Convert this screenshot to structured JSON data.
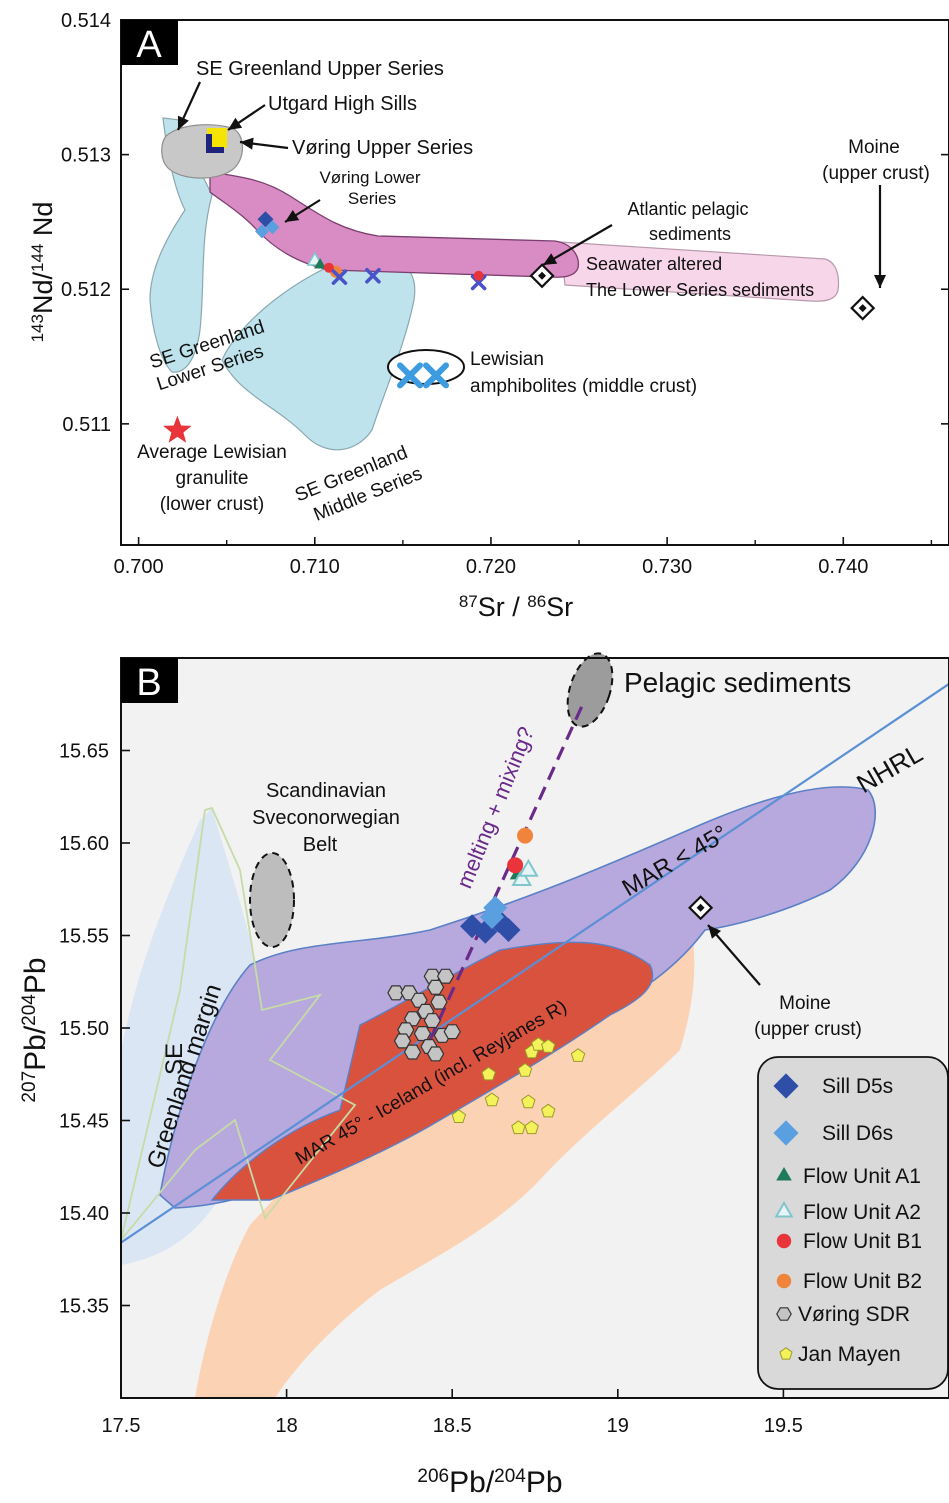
{
  "chart_data": [
    {
      "panel": "A",
      "type": "scatter",
      "xlabel": {
        "main": "Sr / ",
        "sup1": "87",
        "sup2": "86",
        "tail": "Sr"
      },
      "ylabel": {
        "pre": "143",
        "mid": "Nd/",
        "sup": "144",
        "tail": " Nd"
      },
      "xlim": [
        0.699,
        0.746
      ],
      "ylim": [
        0.5101,
        0.514
      ],
      "xticks": [
        0.7,
        0.71,
        0.72,
        0.73,
        0.74
      ],
      "xtick_labels": [
        "0.700",
        "0.710",
        "0.720",
        "0.730",
        "0.740"
      ],
      "yticks": [
        0.511,
        0.512,
        0.513,
        0.514
      ],
      "ytick_labels": [
        "0.511",
        "0.512",
        "0.513",
        "0.514"
      ],
      "colors": {
        "pink": "#d98cc4",
        "lightpink": "#f7d6ea",
        "cyan": "#bfe3ec",
        "grey": "#c8c8c8",
        "yellow": "#f5e400",
        "navy": "#20237a",
        "red": "#e8343a"
      },
      "labels": [
        "SE Greenland Upper Series",
        "Utgard High Sills",
        "Vøring Upper Series",
        "Vøring Lower",
        "Series",
        "Atlantic pelagic",
        "sediments",
        "Seawater altered",
        "The Lower Series sediments",
        "Moine",
        "(upper crust)",
        "SE Greenland",
        "Lower Series",
        "Lewisian",
        "amphibolites (middle crust)",
        "Average Lewisian",
        "granulite",
        "(lower crust)",
        "SE Greenland",
        "Middle Series"
      ],
      "points": [
        {
          "name": "Sill D5s",
          "x": 0.7072,
          "y": 0.51252
        },
        {
          "name": "Sill D6s",
          "x": 0.7076,
          "y": 0.51246
        },
        {
          "name": "Flow Unit A1",
          "x": 0.7103,
          "y": 0.51218
        },
        {
          "name": "Flow Unit A2",
          "x": 0.71,
          "y": 0.51221
        },
        {
          "name": "Flow Unit B1",
          "x": 0.7193,
          "y": 0.5121
        },
        {
          "name": "Flow Unit B2",
          "x": 0.7112,
          "y": 0.51213
        },
        {
          "name": "Atlantic pelagic sediments",
          "x": 0.7229,
          "y": 0.5121
        },
        {
          "name": "Moine",
          "x": 0.7411,
          "y": 0.51186
        },
        {
          "name": "Lewisian amphibolites",
          "x": 0.7162,
          "y": 0.51136
        },
        {
          "name": "Average Lewisian granulite",
          "x": 0.7022,
          "y": 0.51095
        }
      ]
    },
    {
      "panel": "B",
      "type": "scatter",
      "xlabel": {
        "pre": "206",
        "mid": "Pb/",
        "sup": "204",
        "tail": "Pb"
      },
      "ylabel": {
        "pre": "207",
        "mid": "Pb/",
        "sup": "204",
        "tail": "Pb"
      },
      "xlim": [
        17.5,
        20.0
      ],
      "ylim": [
        15.3,
        15.7
      ],
      "xticks": [
        17.5,
        18,
        18.5,
        19,
        19.5
      ],
      "xtick_labels": [
        "17.5",
        "18",
        "18.5",
        "19",
        "19.5"
      ],
      "yticks": [
        15.35,
        15.4,
        15.45,
        15.5,
        15.55,
        15.6,
        15.65
      ],
      "ytick_labels": [
        "15.35",
        "15.40",
        "15.45",
        "15.50",
        "15.55",
        "15.60",
        "15.65"
      ],
      "labels": [
        "Pelagic sediments",
        "NHRL",
        "MAR < 45°",
        "melting + mixing?",
        "Scandinavian",
        "Sveconorwegian",
        "Belt",
        "SE",
        "Greenland margin",
        "MAR 45° - Iceland (incl. Reyjanes R)",
        "Moine",
        "(upper crust)"
      ],
      "moine": {
        "x": 19.25,
        "y": 15.565
      },
      "series": [
        {
          "name": "Sill D5s",
          "marker": "diamond",
          "color": "#2f4ea8",
          "points": [
            [
              18.56,
              15.555
            ],
            [
              18.6,
              15.552
            ],
            [
              18.64,
              15.558
            ],
            [
              18.67,
              15.553
            ]
          ]
        },
        {
          "name": "Sill D6s",
          "marker": "diamond",
          "color": "#5aa0e0",
          "points": [
            [
              18.63,
              15.565
            ],
            [
              18.62,
              15.56
            ]
          ]
        },
        {
          "name": "Flow Unit A1",
          "marker": "triangle",
          "color": "#1f7a5a",
          "points": [
            [
              18.7,
              15.583
            ]
          ]
        },
        {
          "name": "Flow Unit A2",
          "marker": "triangle-open",
          "color": "#7fc6cc",
          "points": [
            [
              18.71,
              15.58
            ],
            [
              18.73,
              15.585
            ]
          ]
        },
        {
          "name": "Flow Unit B1",
          "marker": "circle",
          "color": "#e8343a",
          "points": [
            [
              18.69,
              15.588
            ]
          ]
        },
        {
          "name": "Flow Unit B2",
          "marker": "circle",
          "color": "#f0843a",
          "points": [
            [
              18.72,
              15.604
            ]
          ]
        },
        {
          "name": "Vøring SDR",
          "marker": "hexagon",
          "color": "#c4c4c4",
          "points": [
            [
              18.33,
              15.519
            ],
            [
              18.37,
              15.519
            ],
            [
              18.44,
              15.528
            ],
            [
              18.48,
              15.528
            ],
            [
              18.45,
              15.522
            ],
            [
              18.4,
              15.515
            ],
            [
              18.46,
              15.514
            ],
            [
              18.42,
              15.509
            ],
            [
              18.38,
              15.505
            ],
            [
              18.44,
              15.504
            ],
            [
              18.36,
              15.499
            ],
            [
              18.41,
              15.497
            ],
            [
              18.47,
              15.496
            ],
            [
              18.5,
              15.498
            ],
            [
              18.35,
              15.493
            ],
            [
              18.43,
              15.49
            ],
            [
              18.38,
              15.487
            ],
            [
              18.45,
              15.486
            ]
          ]
        },
        {
          "name": "Jan Mayen",
          "marker": "pentagon",
          "color": "#f4f25a",
          "points": [
            [
              18.52,
              15.452
            ],
            [
              18.62,
              15.461
            ],
            [
              18.61,
              15.475
            ],
            [
              18.72,
              15.477
            ],
            [
              18.74,
              15.487
            ],
            [
              18.76,
              15.491
            ],
            [
              18.79,
              15.49
            ],
            [
              18.88,
              15.485
            ],
            [
              18.73,
              15.46
            ],
            [
              18.79,
              15.455
            ],
            [
              18.7,
              15.446
            ],
            [
              18.74,
              15.446
            ]
          ]
        }
      ],
      "legend_location": "bottom-right"
    }
  ]
}
